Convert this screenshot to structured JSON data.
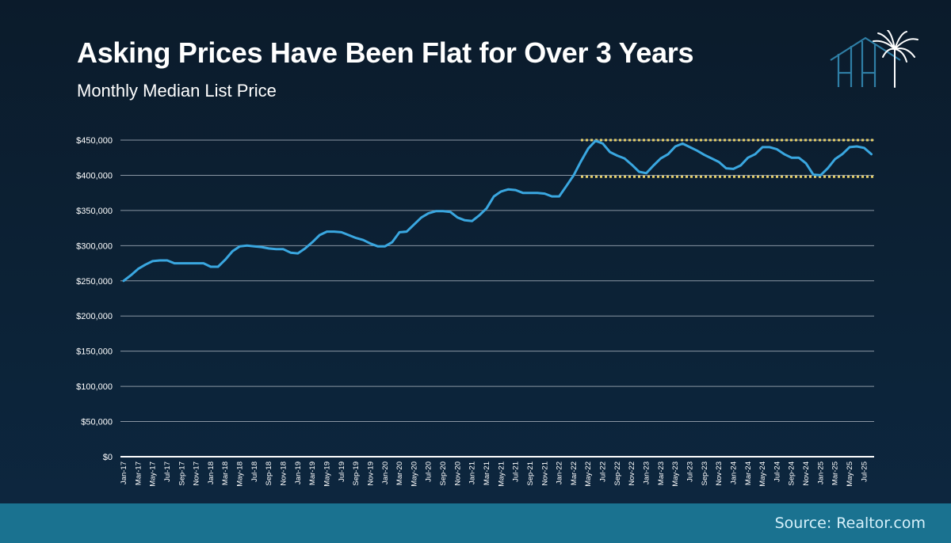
{
  "header": {
    "title": "Asking Prices Have Been Flat for Over 3 Years",
    "subtitle": "Monthly Median List Price",
    "logo_icon": "house-palm-logo-icon"
  },
  "footer": {
    "source": "Source: Realtor.com"
  },
  "colors": {
    "line": "#3aa7e0",
    "band": "#e6cf6a",
    "grid": "#8a96a3",
    "axis": "#ffffff",
    "footer_bg": "#1a7290"
  },
  "chart_data": {
    "type": "line",
    "title": "Asking Prices Have Been Flat for Over 3 Years",
    "subtitle": "Monthly Median List Price",
    "xlabel": "",
    "ylabel": "",
    "ylim": [
      0,
      450000
    ],
    "grid": true,
    "legend": "none",
    "yticks": [
      0,
      50000,
      100000,
      150000,
      200000,
      250000,
      300000,
      350000,
      400000,
      450000
    ],
    "ytick_labels": [
      "$0",
      "$50,000",
      "$100,000",
      "$150,000",
      "$200,000",
      "$250,000",
      "$300,000",
      "$350,000",
      "$400,000",
      "$450,000"
    ],
    "xtick_labels": [
      "Jan-17",
      "Mar-17",
      "May-17",
      "Jul-17",
      "Sep-17",
      "Nov-17",
      "Jan-18",
      "Mar-18",
      "May-18",
      "Jul-18",
      "Sep-18",
      "Nov-18",
      "Jan-19",
      "Mar-19",
      "May-19",
      "Jul-19",
      "Sep-19",
      "Nov-19",
      "Jan-20",
      "Mar-20",
      "May-20",
      "Jul-20",
      "Sep-20",
      "Nov-20",
      "Jan-21",
      "Mar-21",
      "May-21",
      "Jul-21",
      "Sep-21",
      "Nov-21",
      "Jan-22",
      "Mar-22",
      "May-22",
      "Jul-22",
      "Sep-22",
      "Nov-22",
      "Jan-23",
      "Mar-23",
      "May-23",
      "Jul-23",
      "Sep-23",
      "Nov-23",
      "Jan-24",
      "Mar-24",
      "May-24",
      "Jul-24",
      "Sep-24",
      "Nov-24",
      "Jan-25",
      "Mar-25",
      "May-25",
      "Jul-25"
    ],
    "x_start": "Jan-17",
    "x_step": "monthly",
    "series": [
      {
        "name": "Median List Price",
        "values": [
          250000,
          258000,
          267000,
          273000,
          278000,
          279000,
          279000,
          275000,
          275000,
          275000,
          275000,
          275000,
          270000,
          270000,
          280000,
          292000,
          299000,
          300000,
          299000,
          298000,
          296000,
          295000,
          295000,
          290000,
          289000,
          296000,
          305000,
          315000,
          320000,
          320000,
          319000,
          315000,
          311000,
          308000,
          303000,
          299000,
          299000,
          305000,
          319000,
          320000,
          330000,
          340000,
          346000,
          349000,
          349000,
          348000,
          340000,
          336000,
          335000,
          343000,
          353000,
          370000,
          377000,
          380000,
          379000,
          375000,
          375000,
          375000,
          374000,
          370000,
          370000,
          385000,
          400000,
          420000,
          438000,
          449000,
          445000,
          433000,
          428000,
          424000,
          415000,
          405000,
          403000,
          414000,
          424000,
          430000,
          441000,
          445000,
          440000,
          435000,
          429000,
          424000,
          419000,
          410000,
          409000,
          414000,
          425000,
          430000,
          440000,
          440000,
          437000,
          430000,
          425000,
          425000,
          417000,
          401000,
          400000,
          410000,
          423000,
          430000,
          440000,
          441000,
          439000,
          430000
        ]
      }
    ],
    "annotations": [
      {
        "type": "horizontal-band-line",
        "label": "upper bound",
        "value": 450000,
        "from": "Jun-22",
        "to": "Aug-25",
        "style": "dotted"
      },
      {
        "type": "horizontal-band-line",
        "label": "lower bound",
        "value": 398000,
        "from": "Jun-22",
        "to": "Aug-25",
        "style": "dotted"
      }
    ]
  }
}
